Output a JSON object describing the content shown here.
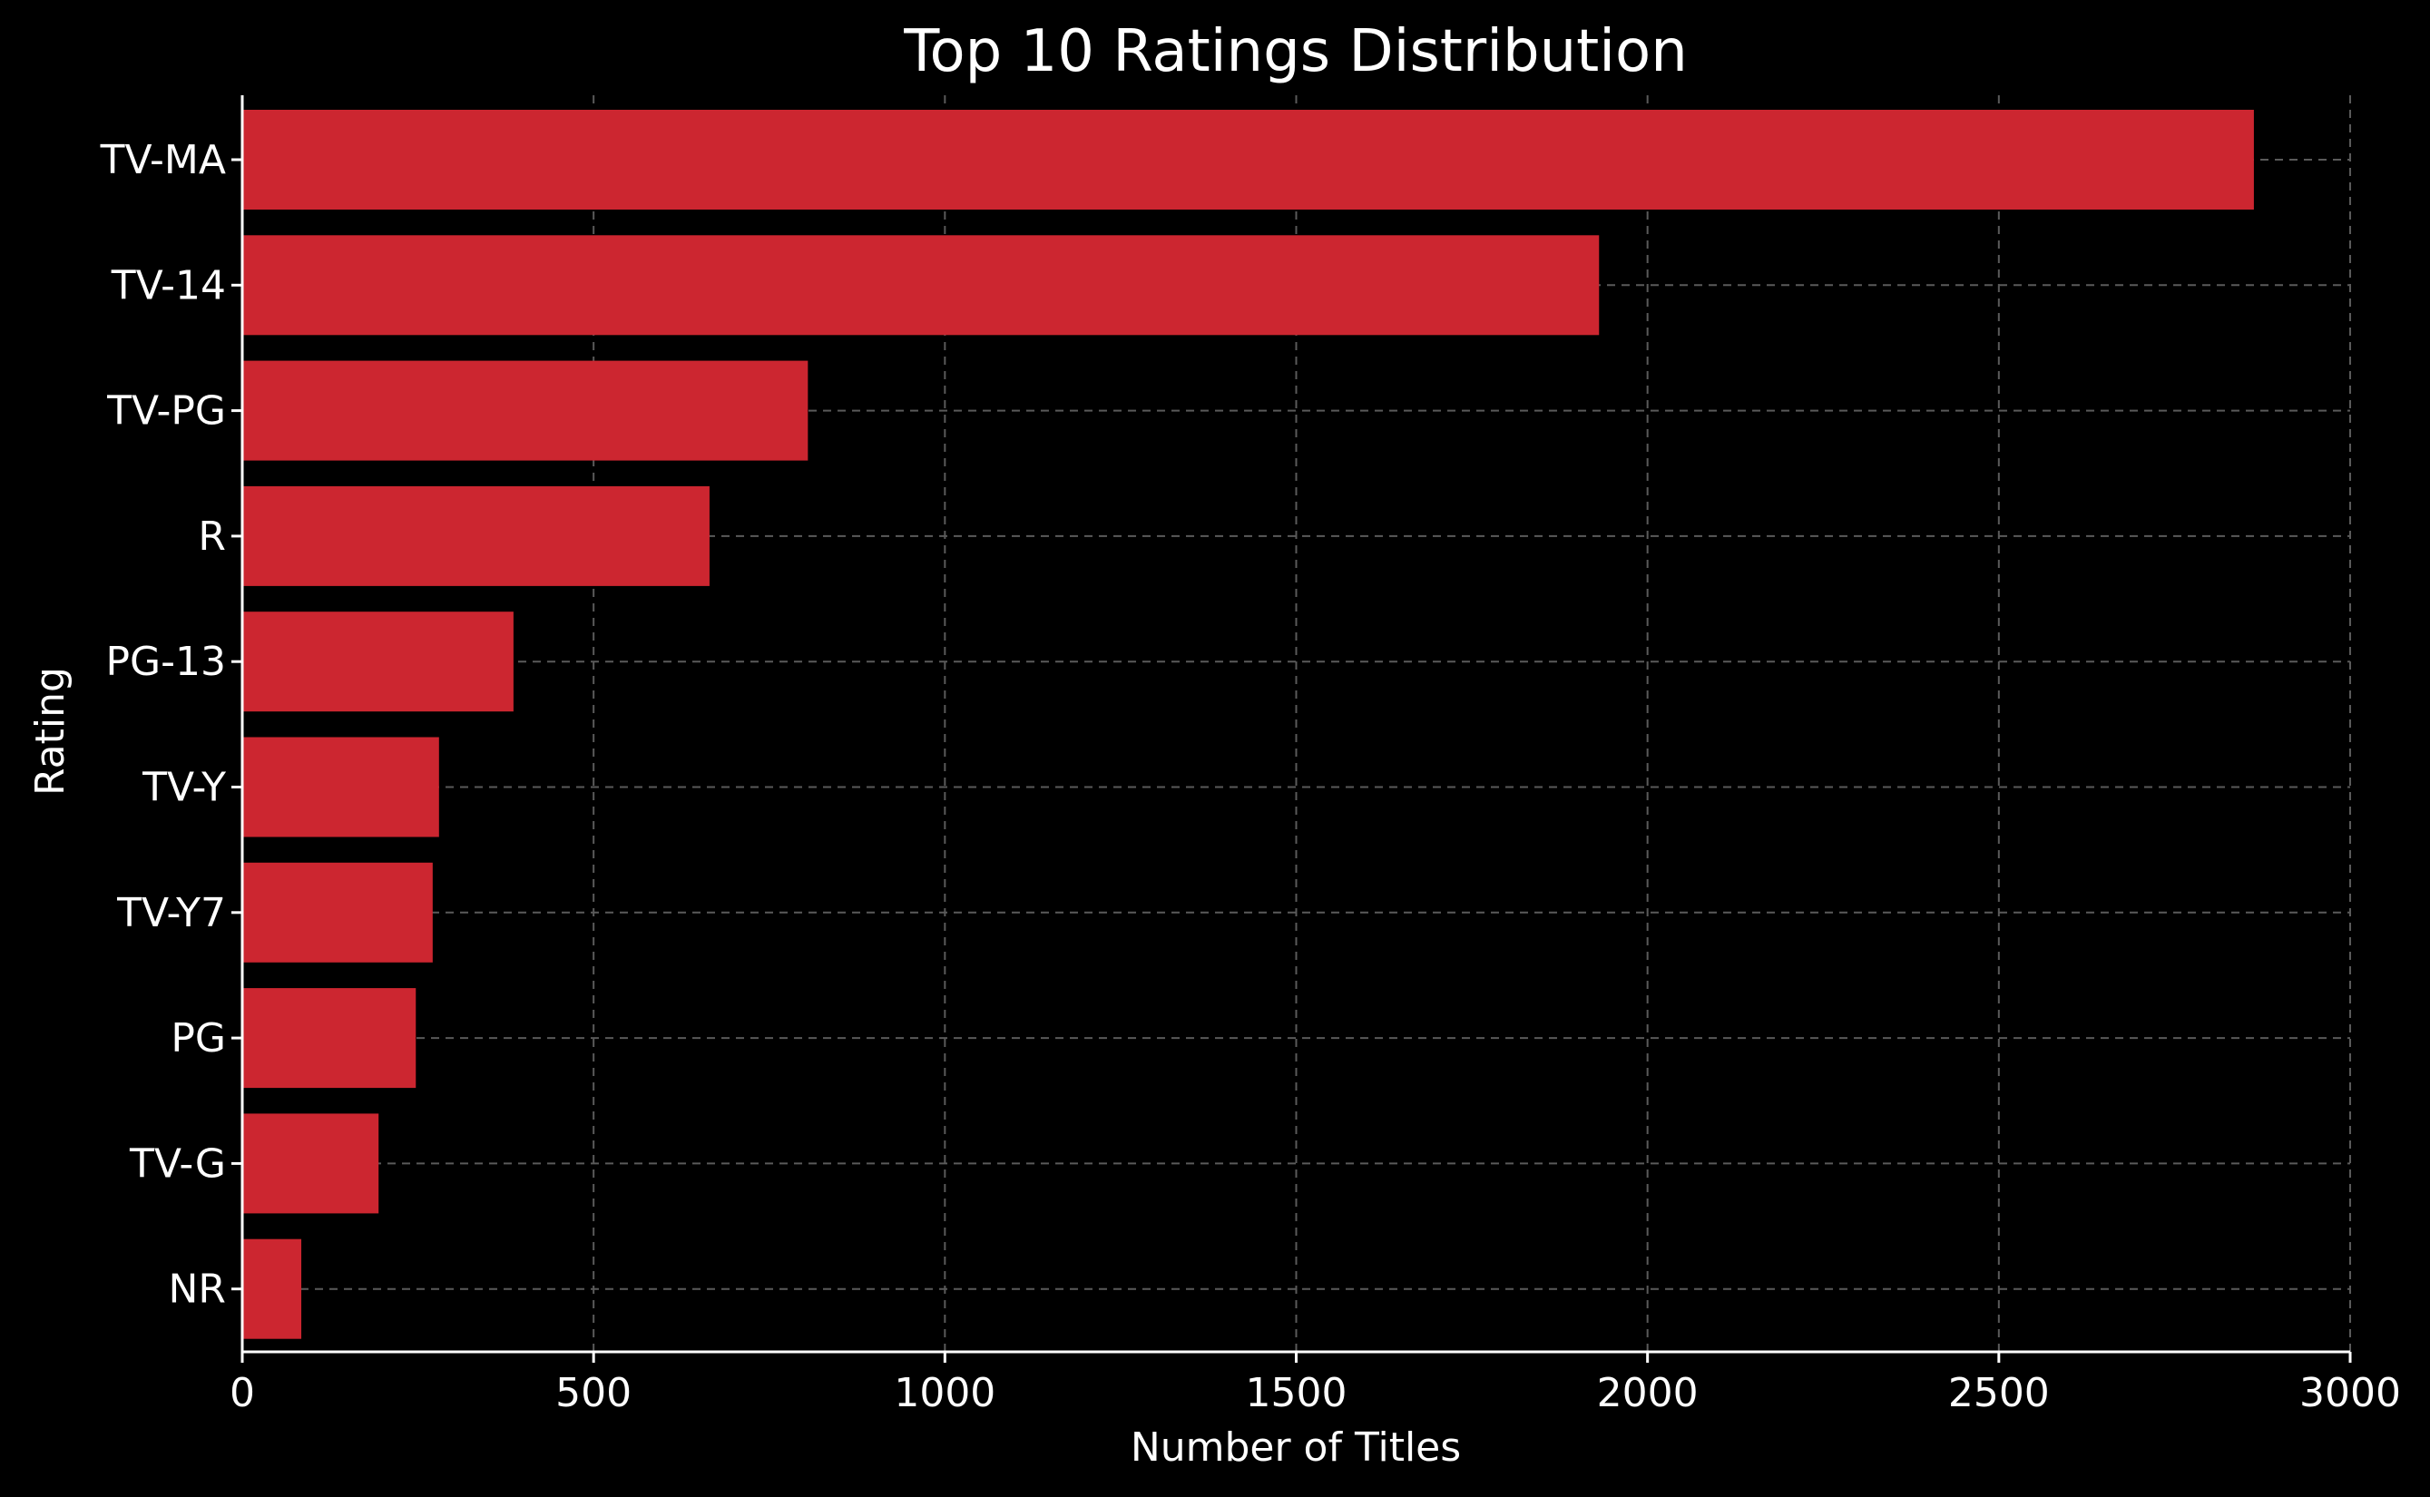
{
  "chart_data": {
    "type": "bar",
    "orientation": "horizontal",
    "title": "Top 10 Ratings Distribution",
    "xlabel": "Number of Titles",
    "ylabel": "Rating",
    "categories": [
      "TV-MA",
      "TV-14",
      "TV-PG",
      "R",
      "PG-13",
      "TV-Y",
      "TV-Y7",
      "PG",
      "TV-G",
      "NR"
    ],
    "values": [
      2863,
      1931,
      805,
      665,
      386,
      280,
      271,
      247,
      194,
      84
    ],
    "xlim": [
      0,
      3000
    ],
    "xticks": [
      0,
      500,
      1000,
      1500,
      2000,
      2500,
      3000
    ],
    "grid": true,
    "bar_color": "#cc2630",
    "background_color": "#000000",
    "grid_color": "#5a5a5a"
  }
}
